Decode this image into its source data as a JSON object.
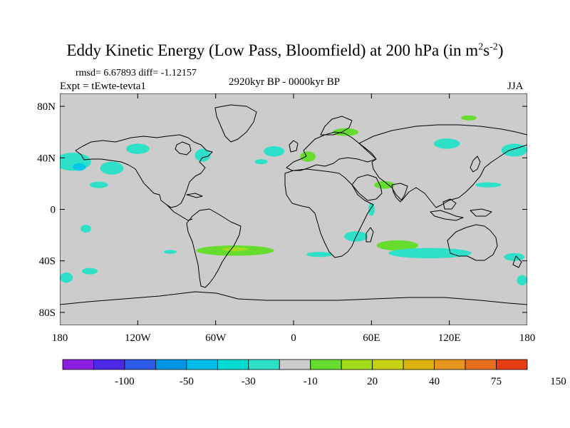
{
  "title": {
    "main": "Eddy Kinetic Energy (Low Pass, Bloomfield) at 200 hPa (in m",
    "sup1": "2",
    "mid": "s",
    "sup2": "-2",
    "end": ")"
  },
  "stats_line": "rmsd= 6.67893 diff= -1.12157",
  "experiment": "Expt = tEwte-tevta1",
  "period": "2920kyr BP - 0000kyr BP",
  "season": "JJA",
  "map": {
    "lat_labels": [
      {
        "lat": 80,
        "text": "80N"
      },
      {
        "lat": 40,
        "text": "40N"
      },
      {
        "lat": 0,
        "text": "0"
      },
      {
        "lat": -40,
        "text": "40S"
      },
      {
        "lat": -80,
        "text": "80S"
      }
    ],
    "lon_labels": [
      {
        "lon": -180,
        "text": "180"
      },
      {
        "lon": -120,
        "text": "120W"
      },
      {
        "lon": -60,
        "text": "60W"
      },
      {
        "lon": 0,
        "text": "0"
      },
      {
        "lon": 60,
        "text": "60E"
      },
      {
        "lon": 120,
        "text": "120E"
      },
      {
        "lon": 180,
        "text": "180"
      }
    ],
    "colors": {
      "neutral": "#cccccc",
      "neg_light": "#2fe0c8",
      "neg_mid": "#00c8e6",
      "pos_light": "#66dc2e",
      "pos_mid": "#a0dc1a"
    },
    "anomalies": [
      {
        "lon": -170,
        "lat": 37,
        "rlon": 14,
        "rlat": 7,
        "level": -10
      },
      {
        "lon": -165,
        "lat": 33,
        "rlon": 5,
        "rlat": 3,
        "level": -30
      },
      {
        "lon": -140,
        "lat": 32,
        "rlon": 9,
        "rlat": 5,
        "level": -10
      },
      {
        "lon": -120,
        "lat": 47,
        "rlon": 9,
        "rlat": 4,
        "level": -10
      },
      {
        "lon": -150,
        "lat": 19,
        "rlon": 7,
        "rlat": 2.5,
        "level": -10
      },
      {
        "lon": -70,
        "lat": 42,
        "rlon": 6,
        "rlat": 5,
        "level": -10
      },
      {
        "lon": -15,
        "lat": 45,
        "rlon": 8,
        "rlat": 4,
        "level": -10
      },
      {
        "lon": -25,
        "lat": 37,
        "rlon": 5,
        "rlat": 2,
        "level": -10
      },
      {
        "lon": 11,
        "lat": 41,
        "rlon": 6,
        "rlat": 4,
        "level": 20
      },
      {
        "lon": 40,
        "lat": 60,
        "rlon": 10,
        "rlat": 3,
        "level": 20
      },
      {
        "lon": 70,
        "lat": 19,
        "rlon": 8,
        "rlat": 3,
        "level": 20
      },
      {
        "lon": 60,
        "lat": 0,
        "rlon": 2.5,
        "rlat": 5,
        "level": -10
      },
      {
        "lon": 48,
        "lat": -21,
        "rlon": 9,
        "rlat": 4,
        "level": -10
      },
      {
        "lon": 80,
        "lat": -28,
        "rlon": 16,
        "rlat": 4,
        "level": 20
      },
      {
        "lon": 105,
        "lat": -34,
        "rlon": 32,
        "rlat": 4,
        "level": -10
      },
      {
        "lon": 170,
        "lat": -37,
        "rlon": 8,
        "rlat": 3,
        "level": -10
      },
      {
        "lon": 118,
        "lat": 51,
        "rlon": 10,
        "rlat": 4,
        "level": -10
      },
      {
        "lon": 170,
        "lat": 46,
        "rlon": 10,
        "rlat": 5,
        "level": -10
      },
      {
        "lon": 150,
        "lat": 19,
        "rlon": 10,
        "rlat": 2,
        "level": -10
      },
      {
        "lon": 135,
        "lat": 71,
        "rlon": 6,
        "rlat": 2,
        "level": 20
      },
      {
        "lon": -160,
        "lat": -15,
        "rlon": 4,
        "rlat": 3,
        "level": -10
      },
      {
        "lon": -95,
        "lat": -33,
        "rlon": 5,
        "rlat": 1.5,
        "level": -10
      },
      {
        "lon": -157,
        "lat": -48,
        "rlon": 6,
        "rlat": 2.5,
        "level": -10
      },
      {
        "lon": -175,
        "lat": -53,
        "rlon": 5,
        "rlat": 4,
        "level": -10
      },
      {
        "lon": 176,
        "lat": -55,
        "rlon": 4,
        "rlat": 4,
        "level": -10
      },
      {
        "lon": -45,
        "lat": -32,
        "rlon": 30,
        "rlat": 4,
        "level": 20
      },
      {
        "lon": -45,
        "lat": -31,
        "rlon": 10,
        "rlat": 1.5,
        "level": 40
      },
      {
        "lon": 20,
        "lat": -35,
        "rlon": 10,
        "rlat": 2,
        "level": -10
      }
    ]
  },
  "colorbar": {
    "colors": [
      "#8c1ee0",
      "#4a28e6",
      "#2a5ae6",
      "#0096e6",
      "#00beeb",
      "#00dcd2",
      "#2fe0c8",
      "#cccccc",
      "#66dc2e",
      "#a0dc1a",
      "#c8d214",
      "#dcb40f",
      "#e6961e",
      "#e66e1e",
      "#e63c14"
    ],
    "labels": [
      {
        "after_box": 2,
        "text": "-100"
      },
      {
        "after_box": 4,
        "text": "-50"
      },
      {
        "after_box": 6,
        "text": "-30"
      },
      {
        "after_box": 8,
        "text": "-10"
      },
      {
        "after_box": 10,
        "text": "20"
      },
      {
        "after_box": 12,
        "text": "40"
      },
      {
        "after_box": 14,
        "text": "75"
      },
      {
        "after_box": 16,
        "text": "150"
      }
    ]
  }
}
